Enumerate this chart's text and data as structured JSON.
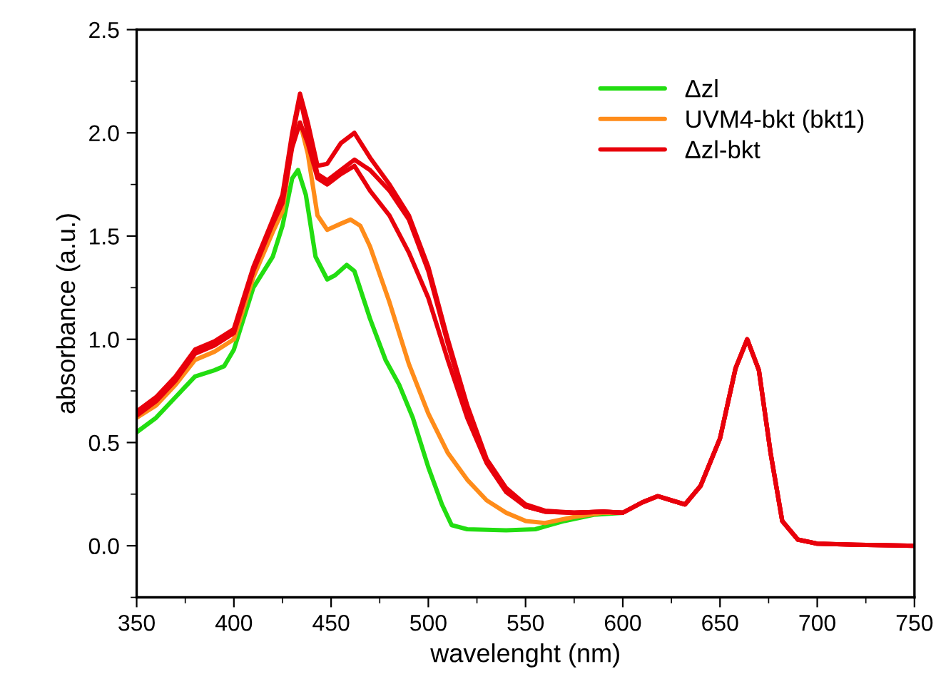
{
  "chart_data": {
    "type": "line",
    "xlabel": "wavelenght (nm)",
    "ylabel": "absorbance (a.u.)",
    "xlim": [
      350,
      750
    ],
    "xticks": [
      350,
      400,
      450,
      500,
      550,
      600,
      650,
      700,
      750
    ],
    "ylim": [
      -0.25,
      2.5
    ],
    "yticks": [
      {
        "value": 0,
        "label": "0.0"
      },
      0.5,
      {
        "value": 1,
        "label": "1.0"
      },
      1.5,
      {
        "value": 2,
        "label": "2.0"
      },
      2.5
    ],
    "grid": false,
    "legend": "top right",
    "marker": "none",
    "line_style": "solid",
    "series": [
      {
        "name": "Δzl",
        "color": "#22dd11",
        "x": [
          350,
          360,
          370,
          380,
          390,
          395,
          400,
          410,
          420,
          425,
          430,
          433,
          437,
          442,
          448,
          452,
          458,
          462,
          470,
          478,
          485,
          492,
          500,
          507,
          512,
          520,
          540,
          555,
          570,
          585,
          600
        ],
        "values": [
          0.55,
          0.62,
          0.72,
          0.82,
          0.85,
          0.87,
          0.95,
          1.25,
          1.4,
          1.55,
          1.78,
          1.82,
          1.7,
          1.4,
          1.29,
          1.31,
          1.36,
          1.33,
          1.1,
          0.9,
          0.78,
          0.62,
          0.38,
          0.2,
          0.1,
          0.08,
          0.075,
          0.08,
          0.12,
          0.15,
          0.16
        ]
      },
      {
        "name": "UVM4-bkt (bkt1)",
        "color": "#ff8c1a",
        "x": [
          350,
          360,
          370,
          380,
          390,
          400,
          410,
          420,
          425,
          430,
          434,
          438,
          443,
          448,
          455,
          460,
          465,
          470,
          480,
          490,
          500,
          510,
          520,
          530,
          540,
          550,
          560,
          575,
          590,
          600
        ],
        "values": [
          0.62,
          0.68,
          0.78,
          0.9,
          0.94,
          1.0,
          1.3,
          1.52,
          1.62,
          1.95,
          2.05,
          1.9,
          1.6,
          1.53,
          1.56,
          1.58,
          1.55,
          1.45,
          1.18,
          0.88,
          0.64,
          0.45,
          0.32,
          0.22,
          0.16,
          0.12,
          0.11,
          0.14,
          0.16,
          0.16
        ]
      },
      {
        "name": "Δzl-bkt",
        "color": "#e8000b",
        "x": [
          350,
          360,
          370,
          380,
          390,
          400,
          410,
          420,
          425,
          430,
          434,
          438,
          443,
          448,
          455,
          462,
          470,
          480,
          490,
          500,
          510,
          520,
          530,
          540,
          550,
          560,
          575,
          590,
          600,
          610,
          618,
          625,
          632,
          640,
          650,
          658,
          664,
          670,
          676,
          682,
          690,
          700,
          720,
          750
        ],
        "values": [
          0.65,
          0.72,
          0.82,
          0.95,
          0.99,
          1.05,
          1.35,
          1.58,
          1.7,
          2.0,
          2.19,
          2.05,
          1.84,
          1.85,
          1.95,
          2.0,
          1.88,
          1.75,
          1.6,
          1.35,
          1.0,
          0.68,
          0.42,
          0.28,
          0.2,
          0.17,
          0.16,
          0.165,
          0.16,
          0.21,
          0.24,
          0.22,
          0.2,
          0.29,
          0.52,
          0.86,
          1.0,
          0.85,
          0.45,
          0.12,
          0.03,
          0.01,
          0.005,
          0.0
        ]
      },
      {
        "color": "#e8000b",
        "x": [
          350,
          360,
          370,
          380,
          390,
          400,
          410,
          420,
          425,
          430,
          434,
          438,
          443,
          448,
          455,
          462,
          470,
          480,
          490,
          500,
          510,
          520,
          530,
          540,
          550,
          560,
          575,
          590,
          600,
          610,
          618,
          625,
          632,
          640,
          650,
          658,
          664,
          670,
          676,
          682,
          690,
          700,
          720,
          750
        ],
        "values": [
          0.64,
          0.71,
          0.81,
          0.94,
          0.98,
          1.04,
          1.34,
          1.57,
          1.68,
          1.98,
          2.17,
          2.0,
          1.8,
          1.77,
          1.82,
          1.87,
          1.82,
          1.72,
          1.58,
          1.33,
          0.98,
          0.66,
          0.41,
          0.27,
          0.19,
          0.165,
          0.16,
          0.165,
          0.16,
          0.21,
          0.24,
          0.22,
          0.2,
          0.29,
          0.52,
          0.86,
          1.0,
          0.85,
          0.45,
          0.12,
          0.03,
          0.01,
          0.005,
          0.0
        ]
      },
      {
        "color": "#e8000b",
        "x": [
          350,
          360,
          370,
          380,
          390,
          400,
          410,
          420,
          425,
          430,
          434,
          438,
          443,
          448,
          455,
          462,
          470,
          480,
          490,
          500,
          510,
          520,
          530,
          540,
          550,
          560,
          575,
          590,
          600,
          610,
          618,
          625,
          632,
          640,
          650,
          658,
          664,
          670,
          676,
          682,
          690,
          700,
          720,
          750
        ],
        "values": [
          0.63,
          0.7,
          0.8,
          0.93,
          0.97,
          1.03,
          1.33,
          1.56,
          1.66,
          1.93,
          2.05,
          1.95,
          1.78,
          1.75,
          1.8,
          1.84,
          1.72,
          1.6,
          1.42,
          1.2,
          0.9,
          0.62,
          0.4,
          0.26,
          0.19,
          0.165,
          0.16,
          0.165,
          0.16,
          0.21,
          0.24,
          0.22,
          0.2,
          0.29,
          0.52,
          0.86,
          1.0,
          0.85,
          0.45,
          0.12,
          0.03,
          0.01,
          0.005,
          0.0
        ]
      }
    ]
  }
}
